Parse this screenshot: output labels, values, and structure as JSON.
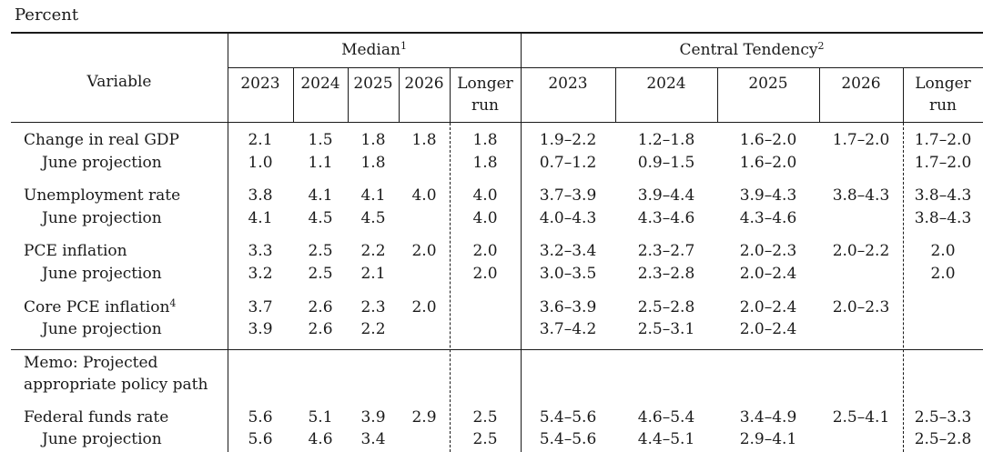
{
  "unit_label": "Percent",
  "header": {
    "variable": "Variable",
    "median": "Median",
    "median_note": "1",
    "central": "Central Tendency",
    "central_note": "2",
    "years": [
      "2023",
      "2024",
      "2025",
      "2026"
    ],
    "longer_run_1": "Longer",
    "longer_run_2": "run"
  },
  "rows": [
    {
      "label": "Change in real GDP",
      "note": "",
      "median": [
        "2.1",
        "1.5",
        "1.8",
        "1.8",
        "1.8"
      ],
      "central": [
        "1.9–2.2",
        "1.2–1.8",
        "1.6–2.0",
        "1.7–2.0",
        "1.7–2.0"
      ]
    },
    {
      "label": "June projection",
      "note": "",
      "median": [
        "1.0",
        "1.1",
        "1.8",
        "",
        "1.8"
      ],
      "central": [
        "0.7–1.2",
        "0.9–1.5",
        "1.6–2.0",
        "",
        "1.7–2.0"
      ]
    },
    {
      "label": "Unemployment rate",
      "note": "",
      "median": [
        "3.8",
        "4.1",
        "4.1",
        "4.0",
        "4.0"
      ],
      "central": [
        "3.7–3.9",
        "3.9–4.4",
        "3.9–4.3",
        "3.8–4.3",
        "3.8–4.3"
      ]
    },
    {
      "label": "June projection",
      "note": "",
      "median": [
        "4.1",
        "4.5",
        "4.5",
        "",
        "4.0"
      ],
      "central": [
        "4.0–4.3",
        "4.3–4.6",
        "4.3–4.6",
        "",
        "3.8–4.3"
      ]
    },
    {
      "label": "PCE inflation",
      "note": "",
      "median": [
        "3.3",
        "2.5",
        "2.2",
        "2.0",
        "2.0"
      ],
      "central": [
        "3.2–3.4",
        "2.3–2.7",
        "2.0–2.3",
        "2.0–2.2",
        "2.0"
      ]
    },
    {
      "label": "June projection",
      "note": "",
      "median": [
        "3.2",
        "2.5",
        "2.1",
        "",
        "2.0"
      ],
      "central": [
        "3.0–3.5",
        "2.3–2.8",
        "2.0–2.4",
        "",
        "2.0"
      ]
    },
    {
      "label": "Core PCE inflation",
      "note": "4",
      "median": [
        "3.7",
        "2.6",
        "2.3",
        "2.0",
        ""
      ],
      "central": [
        "3.6–3.9",
        "2.5–2.8",
        "2.0–2.4",
        "2.0–2.3",
        ""
      ]
    },
    {
      "label": "June projection",
      "note": "",
      "median": [
        "3.9",
        "2.6",
        "2.2",
        "",
        ""
      ],
      "central": [
        "3.7–4.2",
        "2.5–3.1",
        "2.0–2.4",
        "",
        ""
      ]
    },
    {
      "label": "Federal funds rate",
      "note": "",
      "median": [
        "5.6",
        "5.1",
        "3.9",
        "2.9",
        "2.5"
      ],
      "central": [
        "5.4–5.6",
        "4.6–5.4",
        "3.4–4.9",
        "2.5–4.1",
        "2.5–3.3"
      ]
    },
    {
      "label": "June projection",
      "note": "",
      "median": [
        "5.6",
        "4.6",
        "3.4",
        "",
        "2.5"
      ],
      "central": [
        "5.4–5.6",
        "4.4–5.1",
        "2.9–4.1",
        "",
        "2.5–2.8"
      ]
    }
  ],
  "memo": {
    "line1": "Memo: Projected",
    "line2": "appropriate policy path"
  }
}
